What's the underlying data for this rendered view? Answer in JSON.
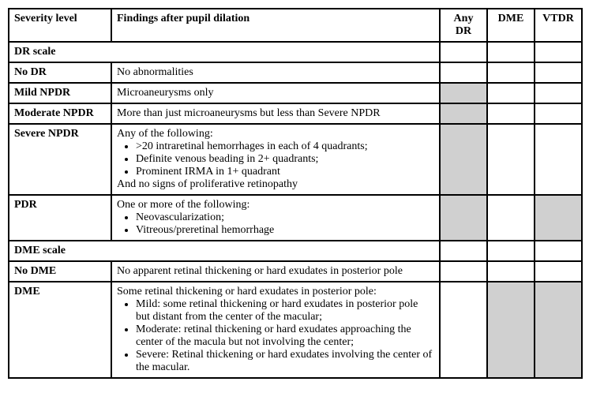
{
  "colors": {
    "shaded_bg": "#d0d0d0",
    "border": "#000000",
    "text": "#000000",
    "background": "#ffffff"
  },
  "typography": {
    "font_family": "Times New Roman",
    "base_size_pt": 11
  },
  "headers": {
    "severity": "Severity level",
    "findings": "Findings after pupil dilation",
    "any_dr": "Any DR",
    "dme": "DME",
    "vtdr": "VTDR"
  },
  "sections": {
    "dr_scale": "DR scale",
    "dme_scale": "DME scale"
  },
  "rows": {
    "no_dr": {
      "label": "No DR",
      "findings": "No abnormalities",
      "any_dr": false,
      "dme": false,
      "vtdr": false
    },
    "mild_npdr": {
      "label": "Mild NPDR",
      "findings": "Microaneurysms only",
      "any_dr": true,
      "dme": false,
      "vtdr": false
    },
    "moderate_npdr": {
      "label": "Moderate NPDR",
      "findings": "More than just microaneurysms but less than Severe NPDR",
      "any_dr": true,
      "dme": false,
      "vtdr": false
    },
    "severe_npdr": {
      "label": "Severe NPDR",
      "intro": "Any of the following:",
      "bullets": [
        ">20 intraretinal hemorrhages in each of 4 quadrants;",
        "Definite venous beading in 2+ quadrants;",
        "Prominent IRMA in 1+ quadrant"
      ],
      "outro": "And no signs of proliferative retinopathy",
      "any_dr": true,
      "dme": false,
      "vtdr": false
    },
    "pdr": {
      "label": "PDR",
      "intro": "One or more of the following:",
      "bullets": [
        "Neovascularization;",
        "Vitreous/preretinal hemorrhage"
      ],
      "any_dr": true,
      "dme": false,
      "vtdr": true
    },
    "no_dme": {
      "label": "No DME",
      "findings": "No apparent retinal thickening or hard exudates in posterior pole",
      "any_dr": false,
      "dme": false,
      "vtdr": false
    },
    "dme_row": {
      "label": "DME",
      "intro": "Some retinal thickening or hard exudates in posterior pole:",
      "bullets": [
        "Mild: some retinal thickening or hard exudates in posterior pole but distant from the center of the macular;",
        "Moderate: retinal thickening or hard exudates approaching the center of the macula but not involving the center;",
        "Severe: Retinal thickening or hard exudates involving the center of the macular."
      ],
      "any_dr": false,
      "dme": true,
      "vtdr": true
    }
  }
}
